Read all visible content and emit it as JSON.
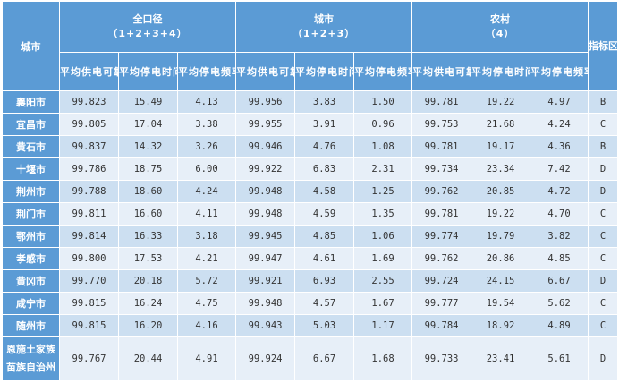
{
  "header": {
    "city": "城市",
    "groups": [
      {
        "title": "全口径",
        "subtitle": "（1+2+3+4）"
      },
      {
        "title": "城市",
        "subtitle": "（1+2+3）"
      },
      {
        "title": "农村",
        "subtitle": "（4）"
      }
    ],
    "metrics": [
      "平均供电可靠率（%）",
      "平均停电时间（时/户）",
      "平均停电频率（次/户）"
    ],
    "zone": "指标区间"
  },
  "rows": [
    {
      "city": "襄阳市",
      "all": [
        "99.823",
        "15.49",
        "4.13"
      ],
      "urban": [
        "99.956",
        "3.83",
        "1.50"
      ],
      "rural": [
        "99.781",
        "19.22",
        "4.97"
      ],
      "zone": "B"
    },
    {
      "city": "宜昌市",
      "all": [
        "99.805",
        "17.04",
        "3.38"
      ],
      "urban": [
        "99.955",
        "3.91",
        "0.96"
      ],
      "rural": [
        "99.753",
        "21.68",
        "4.24"
      ],
      "zone": "C"
    },
    {
      "city": "黄石市",
      "all": [
        "99.837",
        "14.32",
        "3.26"
      ],
      "urban": [
        "99.946",
        "4.76",
        "1.08"
      ],
      "rural": [
        "99.781",
        "19.17",
        "4.36"
      ],
      "zone": "B"
    },
    {
      "city": "十堰市",
      "all": [
        "99.786",
        "18.75",
        "6.00"
      ],
      "urban": [
        "99.922",
        "6.83",
        "2.31"
      ],
      "rural": [
        "99.734",
        "23.34",
        "7.42"
      ],
      "zone": "D"
    },
    {
      "city": "荆州市",
      "all": [
        "99.788",
        "18.60",
        "4.24"
      ],
      "urban": [
        "99.948",
        "4.58",
        "1.25"
      ],
      "rural": [
        "99.762",
        "20.85",
        "4.72"
      ],
      "zone": "D"
    },
    {
      "city": "荆门市",
      "all": [
        "99.811",
        "16.60",
        "4.11"
      ],
      "urban": [
        "99.948",
        "4.59",
        "1.35"
      ],
      "rural": [
        "99.781",
        "19.22",
        "4.70"
      ],
      "zone": "C"
    },
    {
      "city": "鄂州市",
      "all": [
        "99.814",
        "16.33",
        "3.18"
      ],
      "urban": [
        "99.945",
        "4.85",
        "1.06"
      ],
      "rural": [
        "99.774",
        "19.79",
        "3.82"
      ],
      "zone": "C"
    },
    {
      "city": "孝感市",
      "all": [
        "99.800",
        "17.53",
        "4.21"
      ],
      "urban": [
        "99.947",
        "4.61",
        "1.69"
      ],
      "rural": [
        "99.762",
        "20.86",
        "4.85"
      ],
      "zone": "C"
    },
    {
      "city": "黄冈市",
      "all": [
        "99.770",
        "20.18",
        "5.72"
      ],
      "urban": [
        "99.921",
        "6.93",
        "2.55"
      ],
      "rural": [
        "99.724",
        "24.15",
        "6.67"
      ],
      "zone": "D"
    },
    {
      "city": "咸宁市",
      "all": [
        "99.815",
        "16.24",
        "4.75"
      ],
      "urban": [
        "99.948",
        "4.57",
        "1.67"
      ],
      "rural": [
        "99.777",
        "19.54",
        "5.62"
      ],
      "zone": "C"
    },
    {
      "city": "随州市",
      "all": [
        "99.815",
        "16.20",
        "4.16"
      ],
      "urban": [
        "99.943",
        "5.03",
        "1.17"
      ],
      "rural": [
        "99.784",
        "18.92",
        "4.89"
      ],
      "zone": "C"
    },
    {
      "city": "恩施土家族苗族自治州",
      "all": [
        "99.767",
        "20.44",
        "4.91"
      ],
      "urban": [
        "99.924",
        "6.67",
        "1.68"
      ],
      "rural": [
        "99.733",
        "23.41",
        "5.61"
      ],
      "zone": "D"
    }
  ]
}
